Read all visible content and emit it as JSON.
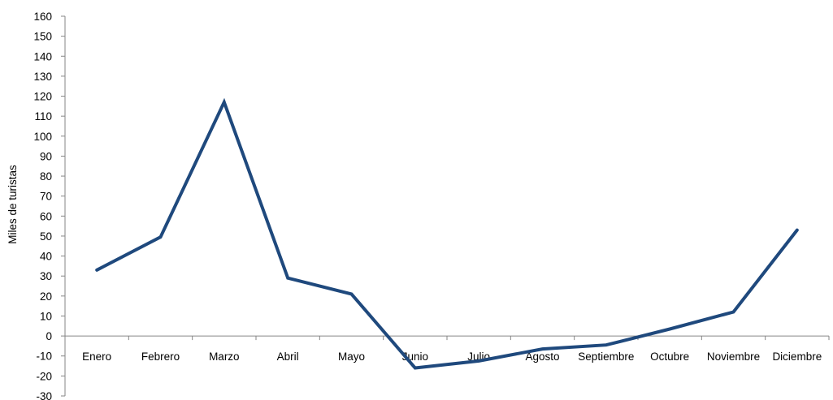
{
  "chart_data": {
    "type": "line",
    "title": "",
    "xlabel": "",
    "ylabel": "Miles de turistas",
    "categories": [
      "Enero",
      "Febrero",
      "Marzo",
      "Abril",
      "Mayo",
      "Junio",
      "Julio",
      "Agosto",
      "Septiembre",
      "Octubre",
      "Noviembre",
      "Diciembre"
    ],
    "series": [
      {
        "values": [
          33,
          49.5,
          117,
          29,
          21,
          -16,
          -12.5,
          -6.5,
          -4.5,
          3.5,
          12,
          53
        ]
      }
    ],
    "ylim": [
      -30,
      160
    ],
    "yticks": [
      "160",
      "150",
      "140",
      "130",
      "120",
      "110",
      "100",
      "90",
      "80",
      "70",
      "60",
      "50",
      "40",
      "30",
      "20",
      "10",
      "0",
      "-10",
      "-20",
      "-30"
    ],
    "grid": false,
    "legend": "none",
    "colors": {
      "line": "#1F497D",
      "axis": "#868686"
    }
  }
}
